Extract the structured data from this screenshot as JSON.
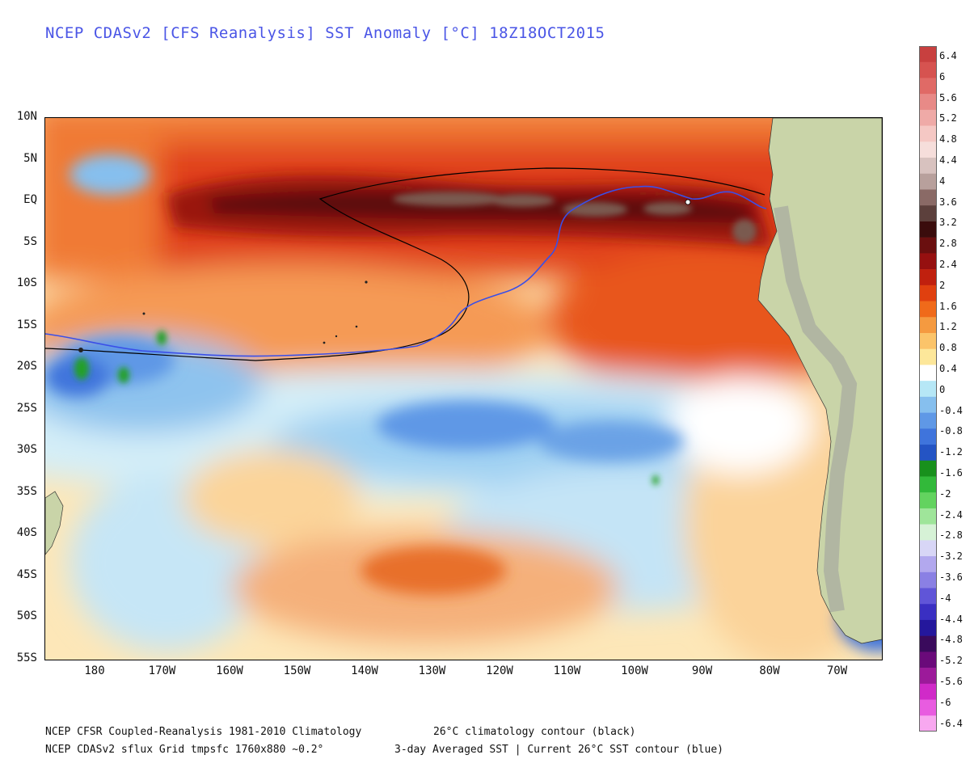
{
  "title": "NCEP CDASv2 [CFS Reanalysis] SST Anomaly [°C] 18Z18OCT2015",
  "map": {
    "region": "Eastern South Pacific",
    "lat_range": [
      -55,
      10
    ],
    "lon_range": [
      172,
      295
    ],
    "lat_labels": [
      "10N",
      "5N",
      "EQ",
      "5S",
      "10S",
      "15S",
      "20S",
      "25S",
      "30S",
      "35S",
      "40S",
      "45S",
      "50S",
      "55S"
    ],
    "lon_labels": [
      "180",
      "170W",
      "160W",
      "150W",
      "140W",
      "130W",
      "120W",
      "110W",
      "100W",
      "90W",
      "80W",
      "70W"
    ],
    "climatology_contour_color": "#000000",
    "current_contour_color": "#3a4fe8",
    "land_color": "#c9d4a8",
    "title_color": "#4a55e6"
  },
  "colorbar": {
    "labels": [
      "6.4",
      "6",
      "5.6",
      "5.2",
      "4.8",
      "4.4",
      "4",
      "3.6",
      "3.2",
      "2.8",
      "2.4",
      "2",
      "1.6",
      "1.2",
      "0.8",
      "0.4",
      "0",
      "-0.4",
      "-0.8",
      "-1.2",
      "-1.6",
      "-2",
      "-2.4",
      "-2.8",
      "-3.2",
      "-3.6",
      "-4",
      "-4.4",
      "-4.8",
      "-5.2",
      "-5.6",
      "-6",
      "-6.4"
    ],
    "colors": [
      "#c8403f",
      "#d65350",
      "#e06a66",
      "#e88a87",
      "#efaaa7",
      "#f5c8c4",
      "#f6dedb",
      "#d8c2bf",
      "#b8a09c",
      "#8a6a66",
      "#5c403c",
      "#3a0c0c",
      "#6a0f0f",
      "#961010",
      "#c0200e",
      "#e0400f",
      "#f06a1a",
      "#f59a40",
      "#fbc46a",
      "#fde79a",
      "#ffffff",
      "#b6e7f6",
      "#86bfee",
      "#5f98e6",
      "#3f74dc",
      "#2454c4",
      "#18901c",
      "#32b93a",
      "#63d35f",
      "#9fe59a",
      "#d6f2d6",
      "#d8d6f6",
      "#b2a8ee",
      "#8a80e4",
      "#6055d8",
      "#3a2fc2",
      "#24179c",
      "#3a0a5c",
      "#6a0a7a",
      "#9c1a9a",
      "#d02ac8",
      "#e85ce0",
      "#f8a8f0"
    ]
  },
  "footer": {
    "line1_left": "NCEP CFSR Coupled-Reanalysis 1981-2010 Climatology",
    "line1_right": "26°C climatology contour (black)",
    "line2_left": "NCEP CDASv2 sflux Grid tmpsfc 1760x880 ~0.2°",
    "line2_right": "3-day Averaged SST | Current 26°C SST contour (blue)"
  }
}
